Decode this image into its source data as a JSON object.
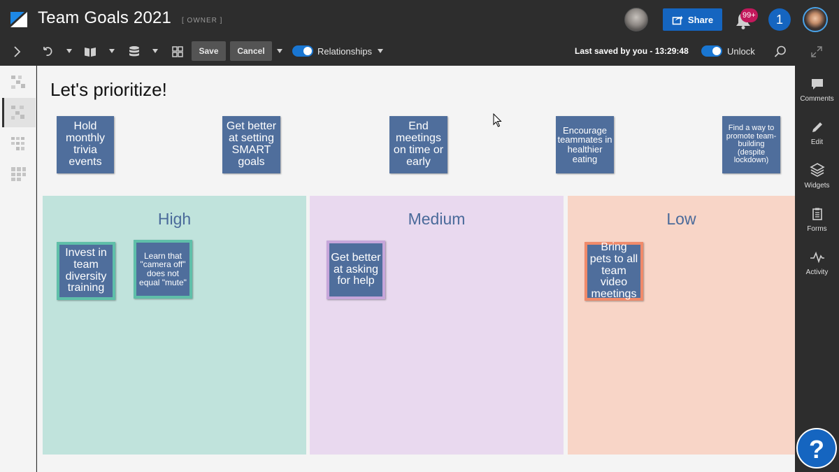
{
  "header": {
    "title": "Team Goals 2021",
    "role": "[ OWNER ]",
    "share_label": "Share",
    "notifications_badge": "99+",
    "user_count": "1"
  },
  "toolbar": {
    "save_label": "Save",
    "cancel_label": "Cancel",
    "relationships_label": "Relationships",
    "relationships_on": true,
    "last_saved": "Last saved by you - 13:29:48",
    "unlock_label": "Unlock",
    "unlock_on": true
  },
  "board": {
    "title": "Let's prioritize!",
    "unsorted_notes": [
      "Hold monthly trivia events",
      "Get better at setting SMART goals",
      "End meetings on time or early",
      "Encourage teammates in healthier eating",
      "Find a way to promote team-building (despite lockdown)"
    ],
    "zones": [
      {
        "label": "High",
        "color": "#c0e3dc",
        "notes": [
          "Invest in team diversity training",
          "Learn that \"camera off\" does not equal \"mute\""
        ]
      },
      {
        "label": "Medium",
        "color": "#e9d9ef",
        "notes": [
          "Get better at asking for help"
        ]
      },
      {
        "label": "Low",
        "color": "#f8d5c7",
        "notes": [
          "Bring pets to all team video meetings"
        ]
      }
    ]
  },
  "sidebar": {
    "items": [
      {
        "label": "Comments",
        "icon": "comment-icon"
      },
      {
        "label": "Edit",
        "icon": "pencil-icon"
      },
      {
        "label": "Widgets",
        "icon": "layers-icon"
      },
      {
        "label": "Forms",
        "icon": "clipboard-icon"
      },
      {
        "label": "Activity",
        "icon": "activity-icon"
      }
    ]
  },
  "help": {
    "label": "?"
  },
  "colors": {
    "note": "#4f6e9c",
    "accent": "#1565c0",
    "high_border": "#5fbfa9",
    "medium_border": "#c6a6da",
    "low_border": "#f08a6a"
  }
}
